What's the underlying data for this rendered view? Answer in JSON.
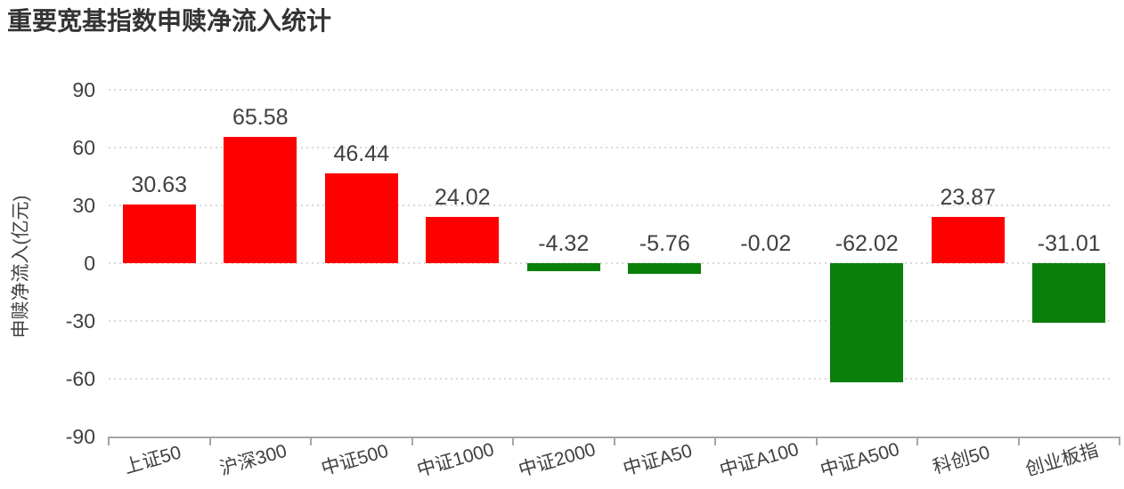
{
  "chart_data": {
    "type": "bar",
    "title": "重要宽基指数申赎净流入统计",
    "xlabel": "",
    "ylabel": "申赎净流入(亿元)",
    "categories": [
      "上证50",
      "沪深300",
      "中证500",
      "中证1000",
      "中证2000",
      "中证A50",
      "中证A100",
      "中证A500",
      "科创50",
      "创业板指"
    ],
    "values": [
      30.63,
      65.58,
      46.44,
      24.02,
      -4.32,
      -5.76,
      -0.02,
      -62.02,
      23.87,
      -31.01
    ],
    "value_labels": [
      "30.63",
      "65.58",
      "46.44",
      "24.02",
      "-4.32",
      "-5.76",
      "-0.02",
      "-62.02",
      "23.87",
      "-31.01"
    ],
    "ylim": [
      -90,
      90
    ],
    "y_ticks": [
      90,
      60,
      30,
      0,
      -30,
      -60,
      -90
    ],
    "grid": "horizontal dotted",
    "legend": "none",
    "x_label_rotation_deg": -16,
    "colors": {
      "positive_bar": "#fe0000",
      "negative_bar": "#0a7f0a",
      "gridline": "#d9d9d9",
      "axis": "#a6a6a6",
      "text": "#404040",
      "title": "#333333"
    }
  }
}
